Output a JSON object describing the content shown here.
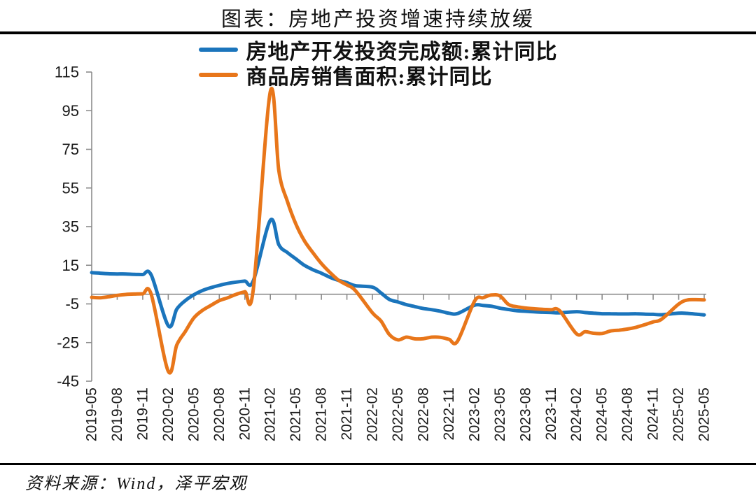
{
  "title": "图表：房地产投资增速持续放缓",
  "source": "资料来源：Wind，泽平宏观",
  "colors": {
    "series_blue": "#1B75BC",
    "series_orange": "#E8761A",
    "axis_gray": "#8C8C8C",
    "tick_text": "#1A1A1A",
    "rule_black": "#000000"
  },
  "chart_data": {
    "type": "line",
    "title": "图表：房地产投资增速持续放缓",
    "xlabel": "",
    "ylabel": "",
    "ylim": [
      -45,
      115
    ],
    "yticks": [
      115,
      95,
      75,
      55,
      35,
      15,
      -5,
      -25,
      -45
    ],
    "zero_gridline": true,
    "legend_position": "top",
    "x": [
      "2019-05",
      "2019-06",
      "2019-07",
      "2019-08",
      "2019-09",
      "2019-10",
      "2019-11",
      "2019-12",
      "2020-02",
      "2020-03",
      "2020-04",
      "2020-05",
      "2020-06",
      "2020-07",
      "2020-08",
      "2020-09",
      "2020-10",
      "2020-11",
      "2020-12",
      "2021-02",
      "2021-03",
      "2021-04",
      "2021-05",
      "2021-06",
      "2021-07",
      "2021-08",
      "2021-09",
      "2021-10",
      "2021-11",
      "2021-12",
      "2022-02",
      "2022-03",
      "2022-04",
      "2022-05",
      "2022-06",
      "2022-07",
      "2022-08",
      "2022-09",
      "2022-10",
      "2022-11",
      "2022-12",
      "2023-02",
      "2023-03",
      "2023-04",
      "2023-05",
      "2023-06",
      "2023-07",
      "2023-08",
      "2023-09",
      "2023-10",
      "2023-11",
      "2023-12",
      "2024-02",
      "2024-03",
      "2024-04",
      "2024-05",
      "2024-06",
      "2024-07",
      "2024-08",
      "2024-09",
      "2024-10",
      "2024-11",
      "2024-12",
      "2025-02",
      "2025-03",
      "2025-04",
      "2025-05"
    ],
    "xticks": [
      "2019-05",
      "2019-08",
      "2019-11",
      "2020-02",
      "2020-05",
      "2020-08",
      "2020-11",
      "2021-02",
      "2021-05",
      "2021-08",
      "2021-11",
      "2022-02",
      "2022-05",
      "2022-08",
      "2022-11",
      "2023-02",
      "2023-05",
      "2023-08",
      "2023-11",
      "2024-02",
      "2024-05",
      "2024-08",
      "2024-11",
      "2025-02",
      "2025-05"
    ],
    "series": [
      {
        "name": "房地产开发投资完成额:累计同比",
        "color": "#1B75BC",
        "values": [
          11.2,
          10.9,
          10.6,
          10.5,
          10.5,
          10.3,
          10.2,
          9.9,
          -16.3,
          -7.7,
          -3.3,
          -0.3,
          1.9,
          3.4,
          4.6,
          5.6,
          6.3,
          6.8,
          7.0,
          38.3,
          25.6,
          21.6,
          18.3,
          15.0,
          12.7,
          10.9,
          8.8,
          7.2,
          6.0,
          4.4,
          3.7,
          0.7,
          -2.7,
          -4.0,
          -5.4,
          -6.4,
          -7.4,
          -8.0,
          -8.8,
          -9.8,
          -10.0,
          -5.7,
          -5.8,
          -6.2,
          -7.2,
          -7.9,
          -8.5,
          -8.8,
          -9.1,
          -9.3,
          -9.4,
          -9.6,
          -9.0,
          -9.5,
          -9.8,
          -10.1,
          -10.1,
          -10.2,
          -10.2,
          -10.1,
          -10.3,
          -10.4,
          -10.6,
          -9.8,
          -9.9,
          -10.3,
          -10.7
        ]
      },
      {
        "name": "商品房销售面积:累计同比",
        "color": "#E8761A",
        "values": [
          -1.6,
          -1.8,
          -1.3,
          -0.6,
          -0.1,
          0.1,
          0.2,
          -0.1,
          -39.9,
          -26.3,
          -19.3,
          -12.3,
          -8.4,
          -5.8,
          -3.3,
          -1.8,
          0.0,
          1.3,
          2.6,
          104.9,
          63.8,
          48.1,
          36.3,
          27.7,
          21.5,
          15.9,
          11.3,
          7.3,
          4.8,
          1.9,
          -9.6,
          -13.8,
          -20.9,
          -23.6,
          -22.2,
          -23.1,
          -23.0,
          -22.2,
          -22.3,
          -23.3,
          -24.3,
          -3.6,
          -1.8,
          -0.4,
          -0.9,
          -5.3,
          -6.5,
          -7.1,
          -7.5,
          -7.8,
          -8.0,
          -8.5,
          -20.5,
          -19.4,
          -20.2,
          -20.3,
          -19.0,
          -18.6,
          -18.0,
          -17.1,
          -15.8,
          -14.3,
          -12.9,
          -5.1,
          -3.0,
          -2.8,
          -2.9
        ]
      }
    ]
  }
}
